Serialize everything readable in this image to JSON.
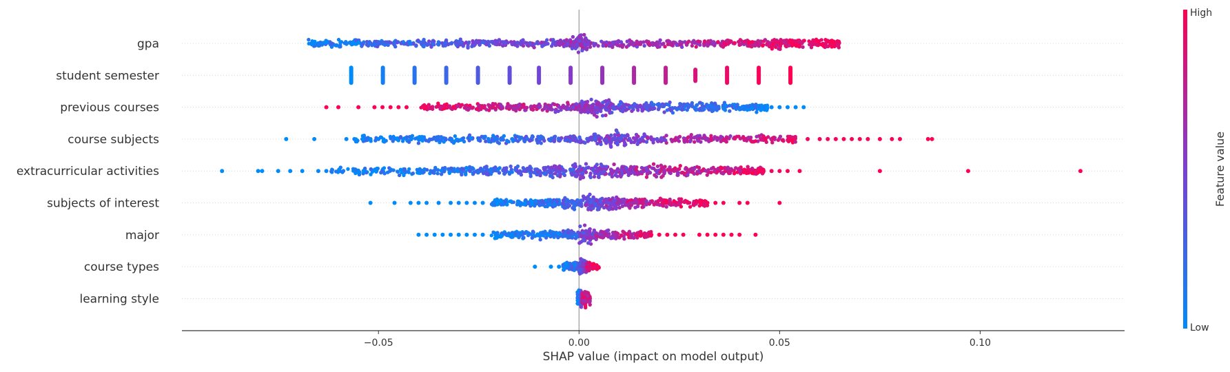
{
  "chart_data": {
    "type": "scatter",
    "subtype": "shap-beeswarm",
    "xlabel": "SHAP value (impact on model output)",
    "xlim": [
      -0.099,
      0.136
    ],
    "xticks": [
      -0.05,
      0.0,
      0.05,
      0.1
    ],
    "xtick_labels": [
      "−0.05",
      "0.00",
      "0.05",
      "0.10"
    ],
    "colorbar": {
      "title": "Feature value",
      "high_label": "High",
      "low_label": "Low",
      "high_color": "#ff0052",
      "low_color": "#008bfb"
    },
    "colors": {
      "high": "#ff0052",
      "low": "#008bfb",
      "baseline": "#999999",
      "axis": "#333333",
      "gridline": "#cccccc"
    },
    "features": [
      {
        "name": "gpa",
        "dense": [
          [
            -0.068,
            0.07,
            0.35
          ],
          [
            -0.062,
            0.14,
            0.35
          ],
          [
            -0.054,
            0.21,
            0.35
          ],
          [
            -0.046,
            0.28,
            0.35
          ],
          [
            -0.038,
            0.34,
            0.35
          ],
          [
            -0.03,
            0.4,
            0.35
          ],
          [
            -0.022,
            0.45,
            0.35
          ],
          [
            -0.014,
            0.5,
            0.35
          ],
          [
            -0.006,
            0.54,
            0.35
          ],
          [
            -0.002,
            0.55,
            1.0
          ],
          [
            0.002,
            0.58,
            0.35
          ],
          [
            0.01,
            0.62,
            0.35
          ],
          [
            0.018,
            0.67,
            0.35
          ],
          [
            0.026,
            0.72,
            0.35
          ],
          [
            0.034,
            0.78,
            0.35
          ],
          [
            0.042,
            0.84,
            0.35
          ],
          [
            0.048,
            0.89,
            0.55
          ],
          [
            0.052,
            0.92,
            0.35
          ],
          [
            0.058,
            0.96,
            0.35
          ],
          [
            0.063,
            0.99,
            0.35
          ]
        ],
        "sparse": []
      },
      {
        "name": "student semester",
        "dense": [
          [
            -0.0568,
            0.0,
            1.0
          ],
          [
            -0.0489,
            0.08,
            1.0
          ],
          [
            -0.041,
            0.16,
            1.0
          ],
          [
            -0.0331,
            0.24,
            1.0
          ],
          [
            -0.0252,
            0.32,
            1.0
          ],
          [
            -0.0173,
            0.4,
            1.0
          ],
          [
            -0.01,
            0.46,
            1.0
          ],
          [
            -0.0021,
            0.54,
            1.0
          ],
          [
            0.0058,
            0.6,
            1.0
          ],
          [
            0.0137,
            0.68,
            1.0
          ],
          [
            0.0216,
            0.76,
            1.0
          ],
          [
            0.029,
            0.84,
            0.8
          ],
          [
            0.0369,
            0.92,
            1.0
          ],
          [
            0.0448,
            0.97,
            1.0
          ],
          [
            0.0527,
            1.0,
            1.0
          ]
        ],
        "sparse": []
      },
      {
        "name": "previous courses",
        "dense": [
          [
            -0.04,
            0.92,
            0.3
          ],
          [
            -0.032,
            0.86,
            0.35
          ],
          [
            -0.024,
            0.78,
            0.4
          ],
          [
            -0.016,
            0.7,
            0.45
          ],
          [
            -0.008,
            0.62,
            0.55
          ],
          [
            0.0,
            0.55,
            0.7
          ],
          [
            0.003,
            0.5,
            1.0
          ],
          [
            0.008,
            0.42,
            0.65
          ],
          [
            0.016,
            0.34,
            0.55
          ],
          [
            0.024,
            0.26,
            0.5
          ],
          [
            0.032,
            0.18,
            0.45
          ],
          [
            0.04,
            0.1,
            0.4
          ],
          [
            0.045,
            0.06,
            0.3
          ]
        ],
        "sparse": [
          [
            -0.063,
            1.0
          ],
          [
            -0.06,
            1.0
          ],
          [
            -0.055,
            1.0
          ],
          [
            -0.051,
            1.0
          ],
          [
            -0.049,
            1.0
          ],
          [
            -0.047,
            1.0
          ],
          [
            -0.045,
            0.98
          ],
          [
            -0.043,
            0.98
          ],
          [
            0.048,
            0.02
          ],
          [
            0.05,
            0.02
          ],
          [
            0.052,
            0.0
          ],
          [
            0.054,
            0.0
          ],
          [
            0.056,
            0.0
          ]
        ]
      },
      {
        "name": "course subjects",
        "dense": [
          [
            -0.056,
            0.05,
            0.3
          ],
          [
            -0.045,
            0.1,
            0.35
          ],
          [
            -0.035,
            0.15,
            0.35
          ],
          [
            -0.025,
            0.22,
            0.4
          ],
          [
            -0.015,
            0.3,
            0.45
          ],
          [
            -0.005,
            0.4,
            0.55
          ],
          [
            0.004,
            0.45,
            1.0
          ],
          [
            0.012,
            0.55,
            0.55
          ],
          [
            0.022,
            0.65,
            0.45
          ],
          [
            0.032,
            0.75,
            0.4
          ],
          [
            0.042,
            0.82,
            0.35
          ],
          [
            0.052,
            0.88,
            0.3
          ]
        ],
        "sparse": [
          [
            -0.073,
            0.0
          ],
          [
            -0.066,
            0.0
          ],
          [
            -0.058,
            0.02
          ],
          [
            -0.056,
            0.02
          ],
          [
            -0.054,
            0.02
          ],
          [
            -0.052,
            0.05
          ],
          [
            -0.05,
            0.05
          ],
          [
            0.057,
            0.95
          ],
          [
            0.06,
            0.95
          ],
          [
            0.062,
            0.95
          ],
          [
            0.064,
            0.97
          ],
          [
            0.066,
            0.97
          ],
          [
            0.068,
            0.97
          ],
          [
            0.07,
            0.97
          ],
          [
            0.072,
            0.97
          ],
          [
            0.075,
            1.0
          ],
          [
            0.078,
            1.0
          ],
          [
            0.08,
            1.0
          ],
          [
            0.087,
            1.0
          ],
          [
            0.088,
            1.0
          ]
        ]
      },
      {
        "name": "extracurricular activities",
        "dense": [
          [
            -0.062,
            0.05,
            0.3
          ],
          [
            -0.052,
            0.08,
            0.35
          ],
          [
            -0.042,
            0.12,
            0.4
          ],
          [
            -0.032,
            0.18,
            0.45
          ],
          [
            -0.024,
            0.24,
            0.55
          ],
          [
            -0.016,
            0.32,
            0.65
          ],
          [
            -0.008,
            0.4,
            0.8
          ],
          [
            -0.001,
            0.48,
            1.0
          ],
          [
            0.006,
            0.56,
            0.8
          ],
          [
            0.014,
            0.66,
            0.65
          ],
          [
            0.022,
            0.74,
            0.55
          ],
          [
            0.03,
            0.82,
            0.45
          ],
          [
            0.038,
            0.88,
            0.35
          ],
          [
            0.044,
            0.92,
            0.3
          ]
        ],
        "sparse": [
          [
            -0.089,
            0.0
          ],
          [
            -0.08,
            0.0
          ],
          [
            -0.079,
            0.0
          ],
          [
            -0.075,
            0.0
          ],
          [
            -0.072,
            0.0
          ],
          [
            -0.069,
            0.0
          ],
          [
            -0.065,
            0.02
          ],
          [
            -0.063,
            0.02
          ],
          [
            0.046,
            0.95
          ],
          [
            0.048,
            0.95
          ],
          [
            0.05,
            0.95
          ],
          [
            0.052,
            0.97
          ],
          [
            0.055,
            0.97
          ],
          [
            0.075,
            1.0
          ],
          [
            0.097,
            1.0
          ],
          [
            0.125,
            1.0
          ]
        ]
      },
      {
        "name": "subjects of interest",
        "dense": [
          [
            -0.022,
            0.05,
            0.3
          ],
          [
            -0.016,
            0.1,
            0.4
          ],
          [
            -0.01,
            0.18,
            0.55
          ],
          [
            -0.004,
            0.3,
            0.7
          ],
          [
            0.001,
            0.45,
            1.0
          ],
          [
            0.006,
            0.6,
            0.75
          ],
          [
            0.012,
            0.72,
            0.55
          ],
          [
            0.018,
            0.82,
            0.45
          ],
          [
            0.024,
            0.9,
            0.35
          ],
          [
            0.03,
            0.95,
            0.3
          ]
        ],
        "sparse": [
          [
            -0.052,
            0.0
          ],
          [
            -0.046,
            0.0
          ],
          [
            -0.042,
            0.0
          ],
          [
            -0.04,
            0.0
          ],
          [
            -0.038,
            0.02
          ],
          [
            -0.035,
            0.02
          ],
          [
            -0.032,
            0.02
          ],
          [
            -0.03,
            0.02
          ],
          [
            -0.028,
            0.02
          ],
          [
            -0.026,
            0.02
          ],
          [
            -0.024,
            0.02
          ],
          [
            0.032,
            0.97
          ],
          [
            0.034,
            0.97
          ],
          [
            0.036,
            0.97
          ],
          [
            0.04,
            0.97
          ],
          [
            0.042,
            1.0
          ],
          [
            0.05,
            1.0
          ]
        ]
      },
      {
        "name": "major",
        "dense": [
          [
            -0.022,
            0.05,
            0.3
          ],
          [
            -0.016,
            0.1,
            0.35
          ],
          [
            -0.01,
            0.15,
            0.4
          ],
          [
            -0.004,
            0.25,
            0.5
          ],
          [
            0.0,
            0.45,
            1.0
          ],
          [
            0.004,
            0.65,
            0.5
          ],
          [
            0.01,
            0.8,
            0.4
          ],
          [
            0.016,
            0.9,
            0.35
          ]
        ],
        "sparse": [
          [
            -0.04,
            0.0
          ],
          [
            -0.038,
            0.0
          ],
          [
            -0.036,
            0.0
          ],
          [
            -0.034,
            0.0
          ],
          [
            -0.032,
            0.0
          ],
          [
            -0.03,
            0.0
          ],
          [
            -0.028,
            0.0
          ],
          [
            -0.026,
            0.02
          ],
          [
            -0.024,
            0.02
          ],
          [
            0.018,
            0.97
          ],
          [
            0.02,
            0.97
          ],
          [
            0.022,
            0.97
          ],
          [
            0.024,
            0.97
          ],
          [
            0.026,
            0.97
          ],
          [
            0.03,
            1.0
          ],
          [
            0.032,
            1.0
          ],
          [
            0.034,
            1.0
          ],
          [
            0.036,
            1.0
          ],
          [
            0.038,
            1.0
          ],
          [
            0.04,
            1.0
          ],
          [
            0.044,
            1.0
          ]
        ]
      },
      {
        "name": "course types",
        "dense": [
          [
            -0.004,
            0.05,
            0.35
          ],
          [
            -0.002,
            0.15,
            0.5
          ],
          [
            0.0,
            0.35,
            1.0
          ],
          [
            0.001,
            0.55,
            0.8
          ],
          [
            0.002,
            0.8,
            0.5
          ],
          [
            0.003,
            0.95,
            0.35
          ]
        ],
        "sparse": [
          [
            -0.011,
            0.0
          ],
          [
            -0.007,
            0.0
          ],
          [
            -0.005,
            0.02
          ]
        ]
      },
      {
        "name": "learning style",
        "dense": [
          [
            -0.0004,
            0.1,
            1.0
          ],
          [
            0.0004,
            0.4,
            1.0
          ],
          [
            0.0008,
            0.8,
            1.0
          ]
        ],
        "sparse": []
      }
    ]
  }
}
